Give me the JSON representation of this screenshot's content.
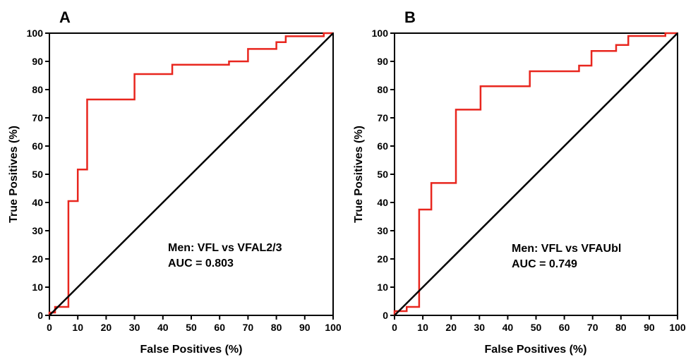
{
  "chart_data": [
    {
      "type": "line",
      "panel_label": "A",
      "xlabel": "False Positives (%)",
      "ylabel": "True Positives (%)",
      "xlim": [
        0,
        100
      ],
      "ylim": [
        0,
        100
      ],
      "xticks": [
        0,
        10,
        20,
        30,
        40,
        50,
        60,
        70,
        80,
        90,
        100
      ],
      "yticks": [
        0,
        10,
        20,
        30,
        40,
        50,
        60,
        70,
        80,
        90,
        100
      ],
      "annotation": [
        "Men: VFL vs VFAL2/3",
        "AUC = 0.803"
      ],
      "colors": {
        "roc": "#e8261e",
        "reference": "#000000"
      },
      "series": [
        {
          "style": "step",
          "points": [
            [
              0,
              0
            ],
            [
              0,
              1
            ],
            [
              2,
              1
            ],
            [
              2,
              3
            ],
            [
              6,
              3
            ],
            [
              6,
              3
            ],
            [
              6.7,
              3
            ],
            [
              6.7,
              40.5
            ],
            [
              10,
              40.5
            ],
            [
              10,
              51.7
            ],
            [
              13.3,
              51.7
            ],
            [
              13.3,
              76.5
            ],
            [
              30,
              76.5
            ],
            [
              30,
              85.5
            ],
            [
              43.3,
              85.5
            ],
            [
              43.3,
              88.8
            ],
            [
              63.3,
              88.8
            ],
            [
              63.3,
              90
            ],
            [
              70,
              90
            ],
            [
              70,
              94.4
            ],
            [
              80,
              94.4
            ],
            [
              80,
              96.8
            ],
            [
              83.3,
              96.8
            ],
            [
              83.3,
              98.9
            ],
            [
              96.7,
              98.9
            ],
            [
              96.7,
              100
            ],
            [
              100,
              100
            ]
          ]
        },
        {
          "style": "diagonal",
          "points": [
            [
              0,
              0
            ],
            [
              100,
              100
            ]
          ]
        }
      ]
    },
    {
      "type": "line",
      "panel_label": "B",
      "xlabel": "False Positives (%)",
      "ylabel": "True Positives (%)",
      "xlim": [
        0,
        100
      ],
      "ylim": [
        0,
        100
      ],
      "xticks": [
        0,
        10,
        20,
        30,
        40,
        50,
        60,
        70,
        80,
        90,
        100
      ],
      "yticks": [
        0,
        10,
        20,
        30,
        40,
        50,
        60,
        70,
        80,
        90,
        100
      ],
      "annotation": [
        "Men: VFL vs VFAUbl",
        "AUC = 0.749"
      ],
      "colors": {
        "roc": "#e8261e",
        "reference": "#000000"
      },
      "series": [
        {
          "style": "step",
          "points": [
            [
              0,
              0
            ],
            [
              0,
              1.5
            ],
            [
              4.3,
              1.5
            ],
            [
              4.3,
              3
            ],
            [
              8.7,
              3
            ],
            [
              8.7,
              37.5
            ],
            [
              13,
              37.5
            ],
            [
              13,
              46.9
            ],
            [
              21.7,
              46.9
            ],
            [
              21.7,
              72.9
            ],
            [
              30.4,
              72.9
            ],
            [
              30.4,
              81.2
            ],
            [
              47.8,
              81.2
            ],
            [
              47.8,
              86.5
            ],
            [
              65.2,
              86.5
            ],
            [
              65.2,
              88.5
            ],
            [
              69.6,
              88.5
            ],
            [
              69.6,
              93.7
            ],
            [
              78.3,
              93.7
            ],
            [
              78.3,
              95.8
            ],
            [
              82.6,
              95.8
            ],
            [
              82.6,
              99
            ],
            [
              95.7,
              99
            ],
            [
              95.7,
              100
            ],
            [
              100,
              100
            ]
          ]
        },
        {
          "style": "diagonal",
          "points": [
            [
              0,
              0
            ],
            [
              100,
              100
            ]
          ]
        }
      ]
    }
  ]
}
